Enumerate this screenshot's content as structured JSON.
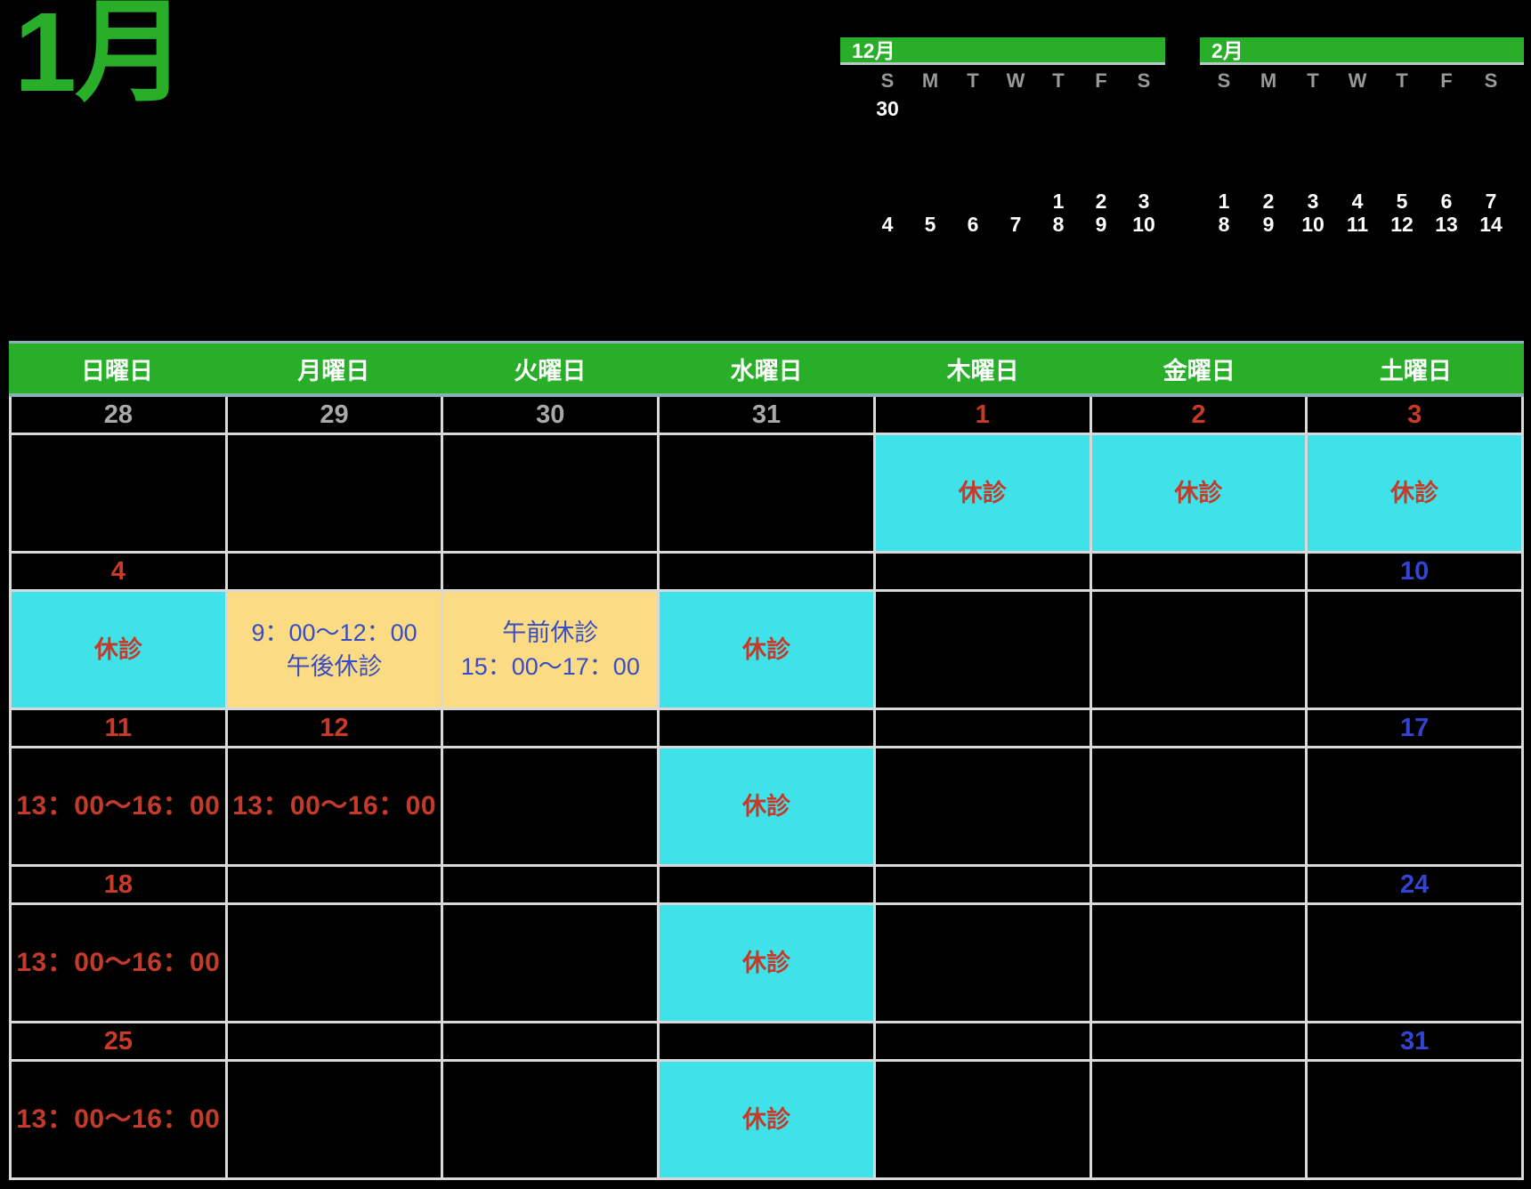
{
  "page": {
    "title": "1月"
  },
  "colors": {
    "green": "#28ae28",
    "cyan": "#3fe2e8",
    "yellow": "#fbdc85",
    "red_text": "#c43a2b",
    "blue_text": "#3a4cc4",
    "blue_date": "#3444d2",
    "red_date": "#c93a28",
    "gray_date": "#a9a9a9",
    "day_letter_gray": "#999999",
    "grid_line": "#d9d9d9",
    "header_border": "#8ab0b8"
  },
  "mini_calendars": [
    {
      "label": "12月",
      "day_letters": [
        "S",
        "M",
        "T",
        "W",
        "T",
        "F",
        "S"
      ],
      "rows": [
        [
          "30",
          "",
          "",
          "",
          "",
          "",
          ""
        ],
        [
          "",
          "",
          "",
          "",
          "",
          "",
          ""
        ],
        [
          "",
          "",
          "",
          "",
          "",
          "",
          ""
        ],
        [
          "",
          "",
          "",
          "",
          "",
          "",
          ""
        ],
        [
          "",
          "",
          "",
          "",
          "1",
          "2",
          "3"
        ],
        [
          "4",
          "5",
          "6",
          "7",
          "8",
          "9",
          "10"
        ]
      ]
    },
    {
      "label": "2月",
      "day_letters": [
        "S",
        "M",
        "T",
        "W",
        "T",
        "F",
        "S"
      ],
      "rows": [
        [
          "",
          "",
          "",
          "",
          "",
          "",
          ""
        ],
        [
          "",
          "",
          "",
          "",
          "",
          "",
          ""
        ],
        [
          "",
          "",
          "",
          "",
          "",
          "",
          ""
        ],
        [
          "",
          "",
          "",
          "",
          "",
          "",
          ""
        ],
        [
          "1",
          "2",
          "3",
          "4",
          "5",
          "6",
          "7"
        ],
        [
          "8",
          "9",
          "10",
          "11",
          "12",
          "13",
          "14"
        ]
      ]
    }
  ],
  "main_calendar": {
    "weekday_headers": [
      "日曜日",
      "月曜日",
      "火曜日",
      "水曜日",
      "木曜日",
      "金曜日",
      "土曜日"
    ],
    "closed_label": "休診",
    "weeks": [
      {
        "dates": [
          {
            "text": "28",
            "color": "gray"
          },
          {
            "text": "29",
            "color": "gray"
          },
          {
            "text": "30",
            "color": "gray"
          },
          {
            "text": "31",
            "color": "gray"
          },
          {
            "text": "1",
            "color": "red"
          },
          {
            "text": "2",
            "color": "red"
          },
          {
            "text": "3",
            "color": "red"
          }
        ],
        "cells": [
          {
            "bg": "black",
            "text_color": "red",
            "lines": []
          },
          {
            "bg": "black",
            "text_color": "red",
            "lines": []
          },
          {
            "bg": "black",
            "text_color": "red",
            "lines": []
          },
          {
            "bg": "black",
            "text_color": "red",
            "lines": []
          },
          {
            "bg": "cyan",
            "text_color": "red",
            "lines": [
              "休診"
            ]
          },
          {
            "bg": "cyan",
            "text_color": "red",
            "lines": [
              "休診"
            ]
          },
          {
            "bg": "cyan",
            "text_color": "red",
            "lines": [
              "休診"
            ]
          }
        ]
      },
      {
        "dates": [
          {
            "text": "4",
            "color": "red"
          },
          {
            "text": "",
            "color": "none"
          },
          {
            "text": "",
            "color": "none"
          },
          {
            "text": "",
            "color": "none"
          },
          {
            "text": "",
            "color": "none"
          },
          {
            "text": "",
            "color": "none"
          },
          {
            "text": "10",
            "color": "blue"
          }
        ],
        "cells": [
          {
            "bg": "cyan",
            "text_color": "red",
            "lines": [
              "休診"
            ]
          },
          {
            "bg": "yellow",
            "text_color": "blue",
            "lines": [
              "9：00～12：00",
              "午後休診"
            ]
          },
          {
            "bg": "yellow",
            "text_color": "blue",
            "lines": [
              "午前休診",
              "15：00～17：00"
            ]
          },
          {
            "bg": "cyan",
            "text_color": "red",
            "lines": [
              "休診"
            ]
          },
          {
            "bg": "black",
            "text_color": "red",
            "lines": []
          },
          {
            "bg": "black",
            "text_color": "red",
            "lines": []
          },
          {
            "bg": "black",
            "text_color": "red",
            "lines": []
          }
        ]
      },
      {
        "dates": [
          {
            "text": "11",
            "color": "red"
          },
          {
            "text": "12",
            "color": "red"
          },
          {
            "text": "",
            "color": "none"
          },
          {
            "text": "",
            "color": "none"
          },
          {
            "text": "",
            "color": "none"
          },
          {
            "text": "",
            "color": "none"
          },
          {
            "text": "17",
            "color": "blue"
          }
        ],
        "cells": [
          {
            "bg": "black",
            "text_color": "red",
            "lines": [
              "13：00～16：00"
            ]
          },
          {
            "bg": "black",
            "text_color": "red",
            "lines": [
              "13：00～16：00"
            ]
          },
          {
            "bg": "black",
            "text_color": "red",
            "lines": []
          },
          {
            "bg": "cyan",
            "text_color": "red",
            "lines": [
              "休診"
            ]
          },
          {
            "bg": "black",
            "text_color": "red",
            "lines": []
          },
          {
            "bg": "black",
            "text_color": "red",
            "lines": []
          },
          {
            "bg": "black",
            "text_color": "red",
            "lines": []
          }
        ]
      },
      {
        "dates": [
          {
            "text": "18",
            "color": "red"
          },
          {
            "text": "",
            "color": "none"
          },
          {
            "text": "",
            "color": "none"
          },
          {
            "text": "",
            "color": "none"
          },
          {
            "text": "",
            "color": "none"
          },
          {
            "text": "",
            "color": "none"
          },
          {
            "text": "24",
            "color": "blue"
          }
        ],
        "cells": [
          {
            "bg": "black",
            "text_color": "red",
            "lines": [
              "13：00～16：00"
            ]
          },
          {
            "bg": "black",
            "text_color": "red",
            "lines": []
          },
          {
            "bg": "black",
            "text_color": "red",
            "lines": []
          },
          {
            "bg": "cyan",
            "text_color": "red",
            "lines": [
              "休診"
            ]
          },
          {
            "bg": "black",
            "text_color": "red",
            "lines": []
          },
          {
            "bg": "black",
            "text_color": "red",
            "lines": []
          },
          {
            "bg": "black",
            "text_color": "red",
            "lines": []
          }
        ]
      },
      {
        "dates": [
          {
            "text": "25",
            "color": "red"
          },
          {
            "text": "",
            "color": "none"
          },
          {
            "text": "",
            "color": "none"
          },
          {
            "text": "",
            "color": "none"
          },
          {
            "text": "",
            "color": "none"
          },
          {
            "text": "",
            "color": "none"
          },
          {
            "text": "31",
            "color": "blue"
          }
        ],
        "cells": [
          {
            "bg": "black",
            "text_color": "red",
            "lines": [
              "13：00～16：00"
            ]
          },
          {
            "bg": "black",
            "text_color": "red",
            "lines": []
          },
          {
            "bg": "black",
            "text_color": "red",
            "lines": []
          },
          {
            "bg": "cyan",
            "text_color": "red",
            "lines": [
              "休診"
            ]
          },
          {
            "bg": "black",
            "text_color": "red",
            "lines": []
          },
          {
            "bg": "black",
            "text_color": "red",
            "lines": []
          },
          {
            "bg": "black",
            "text_color": "red",
            "lines": []
          }
        ]
      }
    ]
  }
}
